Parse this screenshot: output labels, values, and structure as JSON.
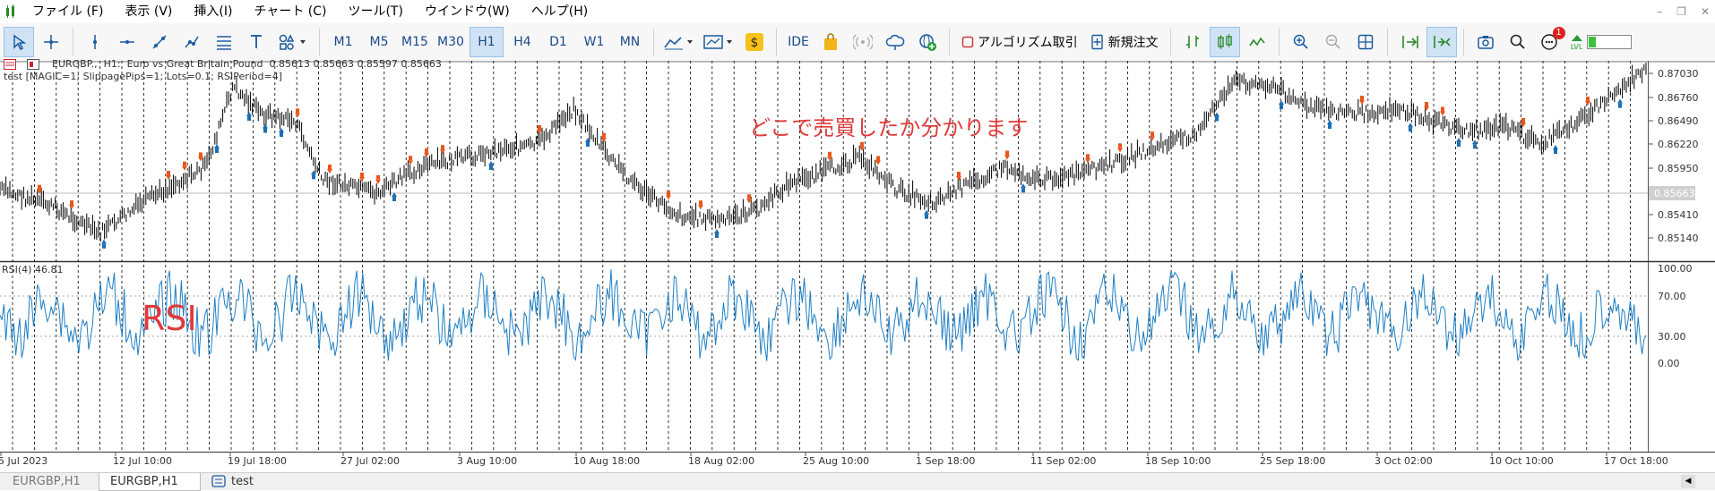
{
  "menu": [
    "ファイル (F)",
    "表示 (V)",
    "挿入(I)",
    "チャート (C)",
    "ツール(T)",
    "ウインドウ(W)",
    "ヘルプ(H)"
  ],
  "toolbar": {
    "timeframes": [
      "M1",
      "M5",
      "M15",
      "M30",
      "H1",
      "H4",
      "D1",
      "W1",
      "MN"
    ],
    "active_timeframe": "H1",
    "ide_label": "IDE",
    "algo_label": "アルゴリズム取引",
    "new_order_label": "新規注文",
    "notification_count": "1",
    "lvl_label": "LVL"
  },
  "chart": {
    "info_line": "EURGBP.,  H1:  Euro vs Great Britain Pound  0.85613 0.85663 0.85597 0.85663",
    "ea_line": "test [MAGIC=1; SlippagePips=1; Lots=0.1; RSIPeriod=4]",
    "annotation": "どこで売買したか分かります",
    "price_labels": [
      "0.87030",
      "0.86760",
      "0.86490",
      "0.86220",
      "0.85950",
      "0.85663",
      "0.85410",
      "0.85140"
    ],
    "current_price": "0.85663",
    "rsi_title": "RSI(4) 46.81",
    "rsi_annotation": "RSI",
    "rsi_levels": [
      "100.00",
      "70.00",
      "30.00",
      "0.00"
    ],
    "dates": [
      "5 Jul 2023",
      "12 Jul 10:00",
      "19 Jul 18:00",
      "27 Jul 02:00",
      "3 Aug 10:00",
      "10 Aug 18:00",
      "18 Aug 02:00",
      "25 Aug 10:00",
      "1 Sep 18:00",
      "11 Sep 02:00",
      "18 Sep 10:00",
      "25 Sep 18:00",
      "3 Oct 02:00",
      "10 Oct 10:00",
      "17 Oct 18:00"
    ]
  },
  "tabs": [
    "EURGBP,H1",
    "EURGBP,H1",
    "test"
  ],
  "colors": {
    "rsi_line": "#1f7fc4",
    "sell_arrow": "#e8561c",
    "buy_arrow": "#1d6fb5",
    "annotation": "#e03a3a",
    "active_toolbar": "#cfe3f5"
  }
}
